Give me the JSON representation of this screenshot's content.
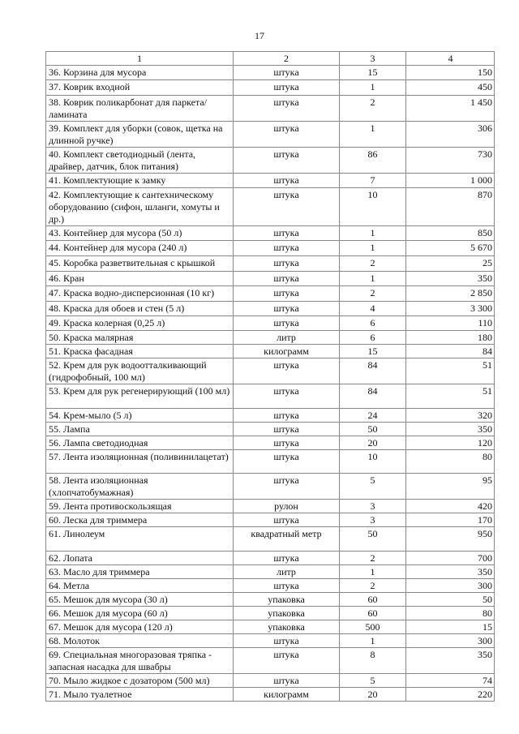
{
  "page_number": "17",
  "table": {
    "headers": [
      "1",
      "2",
      "3",
      "4"
    ],
    "rows": [
      [
        "36. Корзина для мусора",
        "штука",
        "15",
        "150"
      ],
      [
        "37. Коврик входной",
        "штука",
        "1",
        "450"
      ],
      [
        "38. Коврик поликарбонат для паркета/ ламината",
        "штука",
        "2",
        "1 450"
      ],
      [
        "39. Комплект для уборки (совок, щетка на длинной ручке)",
        "штука",
        "1",
        "306"
      ],
      [
        "40. Комплект светодиодный (лента, драйвер, датчик, блок питания)",
        "штука",
        "86",
        "730"
      ],
      [
        "41. Комплектующие к замку",
        "штука",
        "7",
        "1 000"
      ],
      [
        "42. Комплектующие к сантехническому оборудованию (сифон, шланги, хомуты и др.)",
        "штука",
        "10",
        "870"
      ],
      [
        "43. Контейнер для мусора (50 л)",
        "штука",
        "1",
        "850"
      ],
      [
        "44. Контейнер для мусора (240 л)",
        "штука",
        "1",
        "5 670"
      ],
      [
        "45. Коробка разветвительная с крышкой",
        "штука",
        "2",
        "25"
      ],
      [
        "46. Кран",
        "штука",
        "1",
        "350"
      ],
      [
        "47. Краска водно-дисперсионная (10 кг)",
        "штука",
        "2",
        "2 850"
      ],
      [
        "48. Краска для обоев и стен (5 л)",
        "штука",
        "4",
        "3 300"
      ],
      [
        "49. Краска колерная (0,25 л)",
        "штука",
        "6",
        "110"
      ],
      [
        "50. Краска малярная",
        "литр",
        "6",
        "180"
      ],
      [
        "51. Краска фасадная",
        "килограмм",
        "15",
        "84"
      ],
      [
        "52. Крем для рук водоотталкивающий (гидрофобный, 100 мл)",
        "штука",
        "84",
        "51"
      ],
      [
        "53. Крем для рук регенерирующий (100 мл)",
        "штука",
        "84",
        "51"
      ],
      [
        "54. Крем-мыло (5 л)",
        "штука",
        "24",
        "320"
      ],
      [
        "55. Лампа",
        "штука",
        "50",
        "350"
      ],
      [
        "56. Лампа светодиодная",
        "штука",
        "20",
        "120"
      ],
      [
        "57. Лента изоляционная (поливинилацетат)",
        "штука",
        "10",
        "80"
      ],
      [
        "58. Лента изоляционная (хлопчатобумажная)",
        "штука",
        "5",
        "95"
      ],
      [
        "59. Лента противоскользящая",
        "рулон",
        "3",
        "420"
      ],
      [
        "60. Леска для триммера",
        "штука",
        "3",
        "170"
      ],
      [
        "61. Линолеум",
        "квадратный метр",
        "50",
        "950"
      ],
      [
        "62. Лопата",
        "штука",
        "2",
        "700"
      ],
      [
        "63. Масло для триммера",
        "литр",
        "1",
        "350"
      ],
      [
        "64. Метла",
        "штука",
        "2",
        "300"
      ],
      [
        "65. Мешок для мусора  (30 л)",
        "упаковка",
        "60",
        "50"
      ],
      [
        "66. Мешок для мусора  (60 л)",
        "упаковка",
        "60",
        "80"
      ],
      [
        "67. Мешок для мусора (120 л)",
        "упаковка",
        "500",
        "15"
      ],
      [
        "68. Молоток",
        "штука",
        "1",
        "300"
      ],
      [
        "69. Специальная многоразовая тряпка - запасная насадка для швабры",
        "штука",
        "8",
        "350"
      ],
      [
        "70. Мыло жидкое с дозатором (500 мл)",
        "штука",
        "5",
        "74"
      ],
      [
        "71. Мыло туалетное",
        "килограмм",
        "20",
        "220"
      ]
    ]
  }
}
